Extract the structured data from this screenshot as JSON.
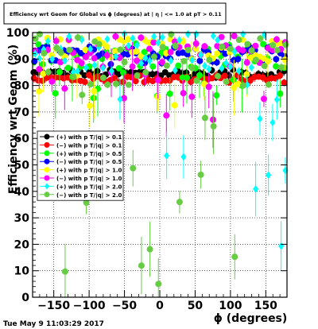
{
  "title": "Efficiency wrt Geom for Global vs ϕ (degrees) at | η | <= 1.0 at pT > 0.11",
  "timestamp": "Tue May  9 11:03:29 2017",
  "chart_data": {
    "type": "scatter",
    "title": "Efficiency wrt Geom for Global vs ϕ (degrees) at | η | <= 1.0 at pT > 0.11",
    "xlabel": "ϕ (degrees)",
    "ylabel": "Efficiency wrt Geom (%)",
    "xlim": [
      -180,
      180
    ],
    "ylim": [
      0,
      100
    ],
    "x_ticks": [
      -150,
      -100,
      -50,
      0,
      50,
      100,
      150
    ],
    "x_tick_labels": [
      "−150",
      "−100",
      "−50",
      "0",
      "50",
      "100",
      "150"
    ],
    "y_ticks": [
      0,
      10,
      20,
      30,
      40,
      50,
      60,
      70,
      80,
      90,
      100
    ],
    "y_tick_labels": [
      "0",
      "10",
      "20",
      "30",
      "40",
      "50",
      "60",
      "70",
      "80",
      "90",
      "100"
    ],
    "grid": true,
    "legend_position": "left-middle",
    "series": [
      {
        "name": "(+) with p T/|q| > 0.1",
        "color": "#000000",
        "marker": "circle-right",
        "band": [
          83,
          86
        ],
        "spread": 0
      },
      {
        "name": "(−) with p T/|q| > 0.1",
        "color": "#ff0000",
        "marker": "circle",
        "band": [
          81,
          84
        ],
        "spread": 2
      },
      {
        "name": "(+) with p T/|q| > 0.5",
        "color": "#00ff00",
        "marker": "circle",
        "band": [
          86,
          96
        ],
        "spread": 6
      },
      {
        "name": "(−) with p T/|q| > 0.5",
        "color": "#0000ff",
        "marker": "circle-right",
        "band": [
          88,
          95
        ],
        "spread": 3
      },
      {
        "name": "(+) with p T/|q| > 1.0",
        "color": "#ffff00",
        "marker": "circle",
        "band": [
          90,
          98
        ],
        "spread": 10
      },
      {
        "name": "(−) with p T/|q| > 1.0",
        "color": "#ff00ff",
        "marker": "circle",
        "band": [
          88,
          99
        ],
        "spread": 12
      },
      {
        "name": "(+) with p T/|q| > 2.0",
        "color": "#00ffff",
        "marker": "diamond",
        "band": [
          85,
          100
        ],
        "spread": 40
      },
      {
        "name": "(−) with p T/|q| > 2.0",
        "color": "#66cc44",
        "marker": "circle",
        "band": [
          80,
          100
        ],
        "spread": 45
      }
    ]
  }
}
